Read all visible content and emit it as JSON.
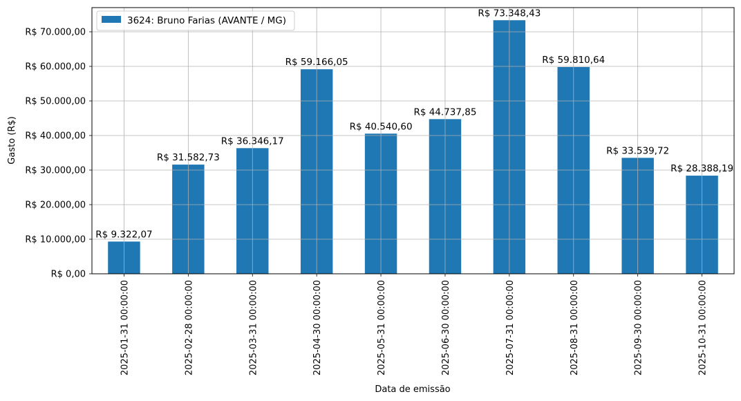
{
  "chart_data": {
    "type": "bar",
    "categories": [
      "2025-01-31 00:00:00",
      "2025-02-28 00:00:00",
      "2025-03-31 00:00:00",
      "2025-04-30 00:00:00",
      "2025-05-31 00:00:00",
      "2025-06-30 00:00:00",
      "2025-07-31 00:00:00",
      "2025-08-31 00:00:00",
      "2025-09-30 00:00:00",
      "2025-10-31 00:00:00"
    ],
    "series": [
      {
        "name": "3624: Bruno Farias (AVANTE / MG)",
        "color": "#1f77b4",
        "values": [
          9322.07,
          31582.73,
          36346.17,
          59166.05,
          40540.6,
          44737.85,
          73348.43,
          59810.64,
          33539.72,
          28388.19
        ],
        "value_labels": [
          "R$ 9.322,07",
          "R$ 31.582,73",
          "R$ 36.346,17",
          "R$ 59.166,05",
          "R$ 40.540,60",
          "R$ 44.737,85",
          "R$ 73.348,43",
          "R$ 59.810,64",
          "R$ 33.539,72",
          "R$ 28.388,19"
        ]
      }
    ],
    "xlabel": "Data de emissão",
    "ylabel": "Gasto (R$)",
    "ylim": [
      0,
      77000
    ],
    "yticks": [
      0,
      10000,
      20000,
      30000,
      40000,
      50000,
      60000,
      70000
    ],
    "ytick_labels": [
      "R$ 0,00",
      "R$ 10.000,00",
      "R$ 20.000,00",
      "R$ 30.000,00",
      "R$ 40.000,00",
      "R$ 50.000,00",
      "R$ 60.000,00",
      "R$ 70.000,00"
    ],
    "grid": true,
    "legend": "top-left"
  }
}
